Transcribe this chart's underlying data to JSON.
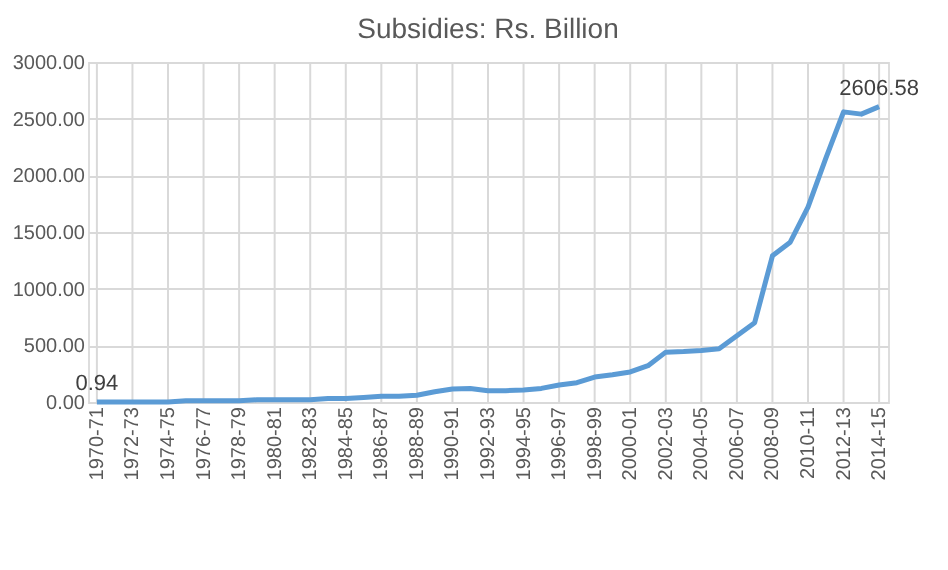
{
  "chart_data": {
    "type": "line",
    "title": "Subsidies: Rs. Billion",
    "categories": [
      "1970-71",
      null,
      "1972-73",
      null,
      "1974-75",
      null,
      "1976-77",
      null,
      "1978-79",
      null,
      "1980-81",
      null,
      "1982-83",
      null,
      "1984-85",
      null,
      "1986-87",
      null,
      "1988-89",
      null,
      "1990-91",
      null,
      "1992-93",
      null,
      "1994-95",
      null,
      "1996-97",
      null,
      "1998-99",
      null,
      "2000-01",
      null,
      "2002-03",
      null,
      "2004-05",
      null,
      "2006-07",
      null,
      "2008-09",
      null,
      "2010-11",
      null,
      "2012-13",
      null,
      "2014-15"
    ],
    "series": [
      {
        "color": "#5b9bd5",
        "values": [
          0.94,
          0,
          0,
          0,
          0,
          10,
          10,
          10,
          10,
          20,
          20,
          20,
          20,
          30,
          30,
          40,
          50,
          50,
          60,
          90,
          115,
          120,
          100,
          100,
          105,
          120,
          150,
          170,
          220,
          240,
          265,
          320,
          440,
          445,
          455,
          470,
          585,
          700,
          1290,
          1410,
          1720,
          2150,
          2560,
          2540,
          2606.58
        ],
        "value_labels": [
          "0.94",
          null,
          null,
          null,
          null,
          null,
          null,
          null,
          null,
          null,
          null,
          null,
          null,
          null,
          null,
          null,
          null,
          null,
          null,
          null,
          null,
          null,
          null,
          null,
          null,
          null,
          null,
          null,
          null,
          null,
          null,
          null,
          null,
          null,
          null,
          null,
          null,
          null,
          null,
          null,
          null,
          null,
          null,
          null,
          "2606.58"
        ]
      }
    ],
    "ylim": [
      0,
      3000
    ],
    "yticks": [
      {
        "value": 0,
        "label": "0.00"
      },
      {
        "value": 500,
        "label": "500.00"
      },
      {
        "value": 1000,
        "label": "1000.00"
      },
      {
        "value": 1500,
        "label": "1500.00"
      },
      {
        "value": 2000,
        "label": "2000.00"
      },
      {
        "value": 2500,
        "label": "2500.00"
      },
      {
        "value": 3000,
        "label": "3000.00"
      }
    ],
    "grid": true,
    "marker": "none",
    "line_style": "solid"
  }
}
